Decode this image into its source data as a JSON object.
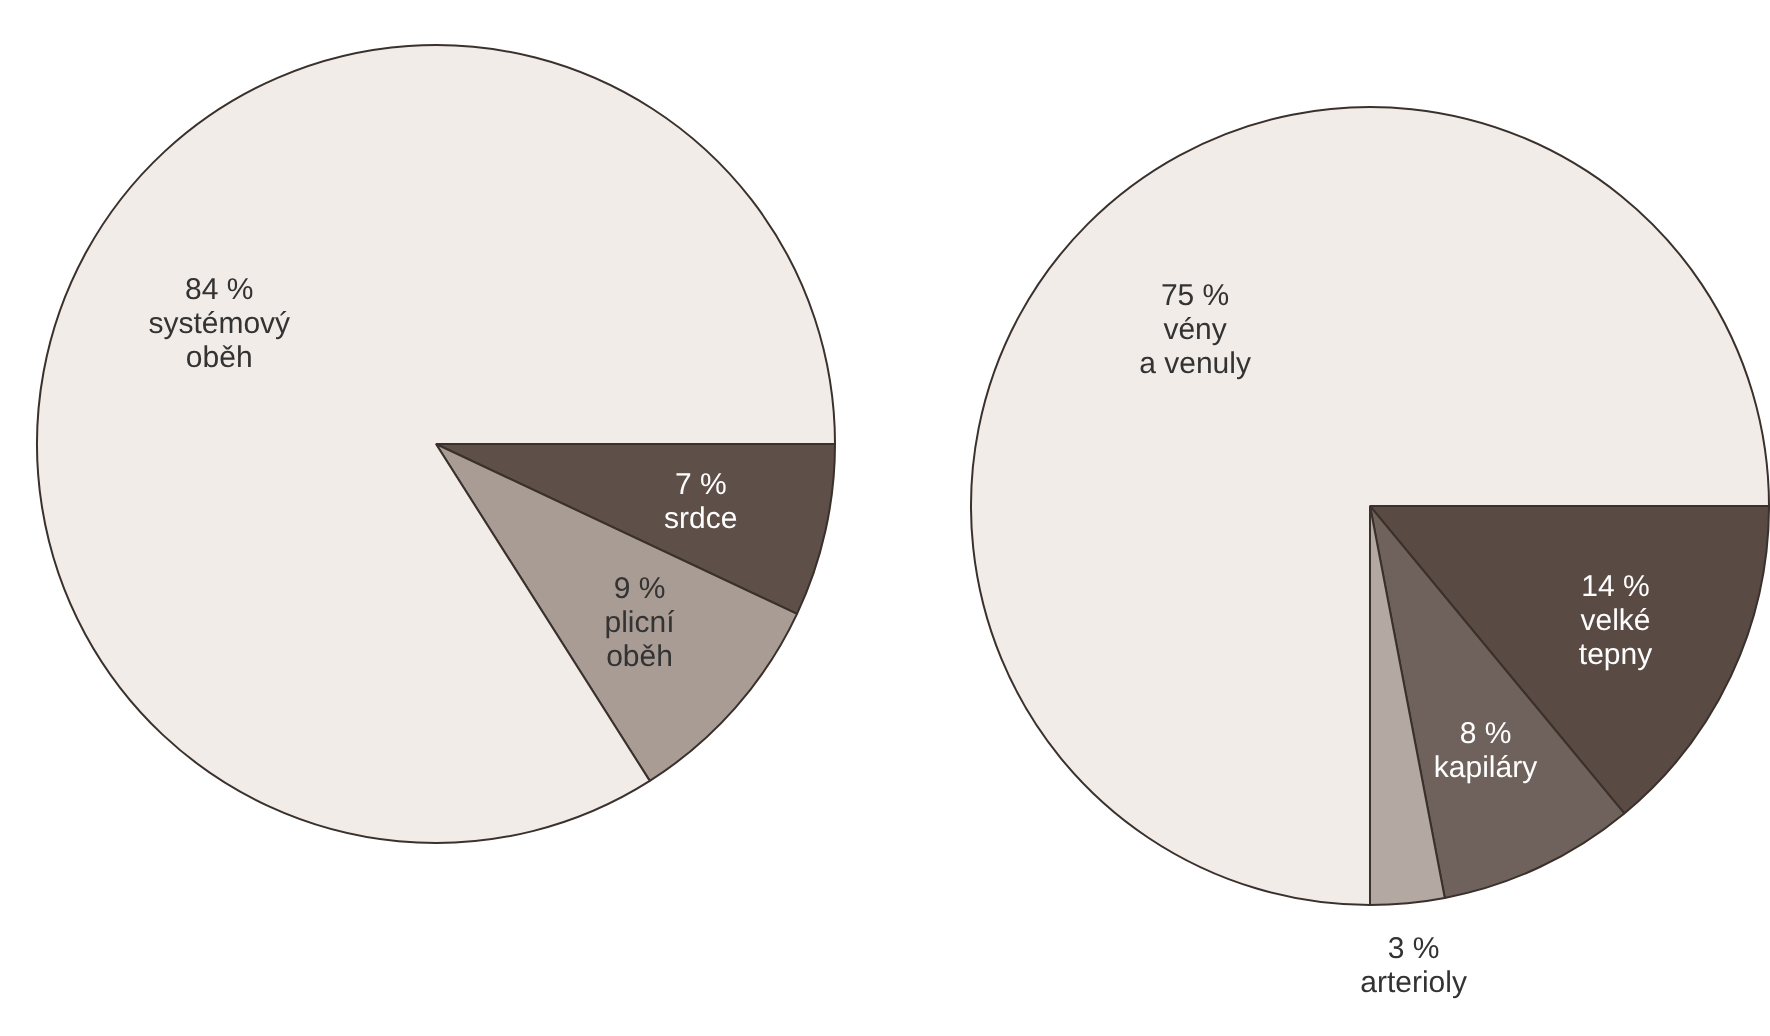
{
  "chart_data": [
    {
      "type": "pie",
      "categories": [
        "srdce",
        "plicní\noběh",
        "systémový\noběh"
      ],
      "values": [
        7,
        9,
        84
      ],
      "value_labels": [
        "7 %",
        "9 %",
        "84 %"
      ],
      "colors": [
        "#5e4f49",
        "#a99c95",
        "#f1ece8"
      ],
      "legend": false
    },
    {
      "type": "pie",
      "categories": [
        "velké\ntepny",
        "kapiláry",
        "arterioly",
        "vény\na venuly"
      ],
      "values": [
        14,
        8,
        3,
        75
      ],
      "value_labels": [
        "14 %",
        "8 %",
        "3 %",
        "75 %"
      ],
      "colors": [
        "#5a4a44",
        "#6f615b",
        "#b3a8a2",
        "#f1ece8"
      ],
      "legend": false
    }
  ]
}
